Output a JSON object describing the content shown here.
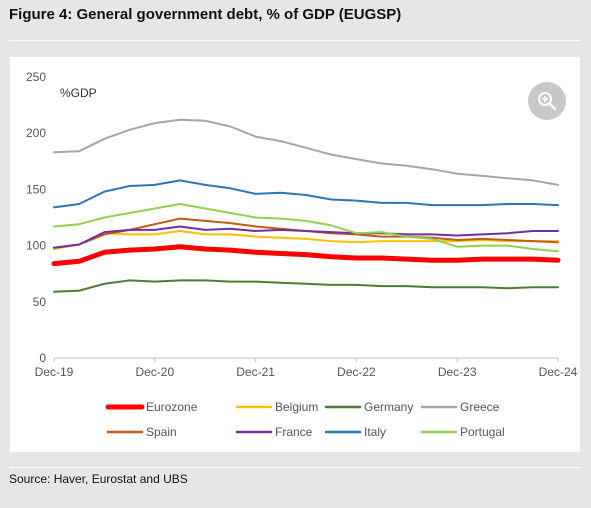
{
  "figure": {
    "title": "Figure 4: General government debt, % of GDP (EUGSP)",
    "source": "Source: Haver, Eurostat and UBS",
    "zoom_icon": "zoom-in-icon"
  },
  "chart_data": {
    "type": "line",
    "title": "",
    "xlabel": "",
    "ylabel": "%GDP",
    "ylim": [
      0,
      250
    ],
    "yticks": [
      0,
      50,
      100,
      150,
      200,
      250
    ],
    "x_tick_labels": [
      "Dec-19",
      "Dec-20",
      "Dec-21",
      "Dec-22",
      "Dec-23",
      "Dec-24"
    ],
    "x_points_note": "quarterly",
    "legend_position": "bottom",
    "grid": false,
    "series": [
      {
        "name": "Eurozone",
        "color": "#ff0000",
        "width": 5,
        "values": [
          84,
          86,
          94,
          96,
          97,
          99,
          97,
          96,
          94,
          93,
          92,
          90,
          89,
          89,
          88,
          87,
          87,
          88,
          88,
          88,
          87
        ]
      },
      {
        "name": "Belgium",
        "color": "#ffc000",
        "width": 2,
        "values": [
          97,
          101,
          111,
          110,
          110,
          113,
          110,
          110,
          108,
          107,
          106,
          104,
          103,
          104,
          104,
          104,
          104,
          105,
          104,
          104,
          104
        ]
      },
      {
        "name": "Germany",
        "color": "#4e7c32",
        "width": 2,
        "values": [
          59,
          60,
          66,
          69,
          68,
          69,
          69,
          68,
          68,
          67,
          66,
          65,
          65,
          64,
          64,
          63,
          63,
          63,
          62,
          63,
          63
        ]
      },
      {
        "name": "Greece",
        "color": "#a6a6a6",
        "width": 2,
        "values": [
          183,
          184,
          195,
          203,
          209,
          212,
          211,
          206,
          197,
          193,
          187,
          181,
          177,
          173,
          171,
          168,
          164,
          162,
          160,
          158,
          154
        ]
      },
      {
        "name": "Spain",
        "color": "#c55a11",
        "width": 2,
        "values": [
          98,
          101,
          110,
          114,
          119,
          124,
          122,
          120,
          117,
          115,
          113,
          111,
          110,
          108,
          108,
          107,
          105,
          106,
          105,
          104,
          103
        ]
      },
      {
        "name": "France",
        "color": "#7030a0",
        "width": 2,
        "values": [
          98,
          101,
          112,
          114,
          114,
          117,
          114,
          115,
          113,
          114,
          113,
          112,
          111,
          111,
          110,
          110,
          109,
          110,
          111,
          113,
          113
        ]
      },
      {
        "name": "Italy",
        "color": "#2e75b6",
        "width": 2,
        "values": [
          134,
          137,
          148,
          153,
          154,
          158,
          154,
          151,
          146,
          147,
          145,
          141,
          140,
          138,
          138,
          136,
          136,
          136,
          137,
          137,
          136
        ]
      },
      {
        "name": "Portugal",
        "color": "#92d050",
        "width": 2,
        "values": [
          117,
          119,
          125,
          129,
          133,
          137,
          133,
          129,
          125,
          124,
          122,
          118,
          111,
          112,
          108,
          106,
          99,
          100,
          100,
          97,
          95
        ]
      }
    ]
  }
}
